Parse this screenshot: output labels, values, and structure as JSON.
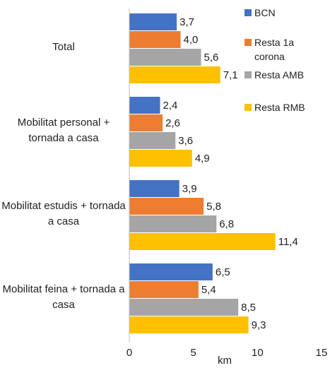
{
  "chart_data": {
    "type": "bar",
    "orientation": "horizontal",
    "categories": [
      "Total",
      "Mobilitat personal + tornada a casa",
      "Mobilitat estudis + tornada a casa",
      "Mobilitat feina + tornada a casa"
    ],
    "series": [
      {
        "name": "BCN",
        "color": "#4472c4",
        "values": [
          3.7,
          2.4,
          3.9,
          6.5
        ],
        "value_labels": [
          "3,7",
          "2,4",
          "3,9",
          "6,5"
        ]
      },
      {
        "name": "Resta 1a corona",
        "color": "#ed7d31",
        "values": [
          4.0,
          2.6,
          5.8,
          5.4
        ],
        "value_labels": [
          "4,0",
          "2,6",
          "5,8",
          "5,4"
        ]
      },
      {
        "name": "Resta AMB",
        "color": "#a5a5a5",
        "values": [
          5.6,
          3.6,
          6.8,
          8.5
        ],
        "value_labels": [
          "5,6",
          "3,6",
          "6,8",
          "8,5"
        ]
      },
      {
        "name": "Resta RMB",
        "color": "#ffc000",
        "values": [
          7.1,
          4.9,
          11.4,
          9.3
        ],
        "value_labels": [
          "7,1",
          "4,9",
          "11,4",
          "9,3"
        ]
      }
    ],
    "xlabel": "km",
    "xlim": [
      0,
      15
    ],
    "xticks": [
      0,
      5,
      10,
      15
    ],
    "grid": false,
    "legend": "upper right"
  }
}
